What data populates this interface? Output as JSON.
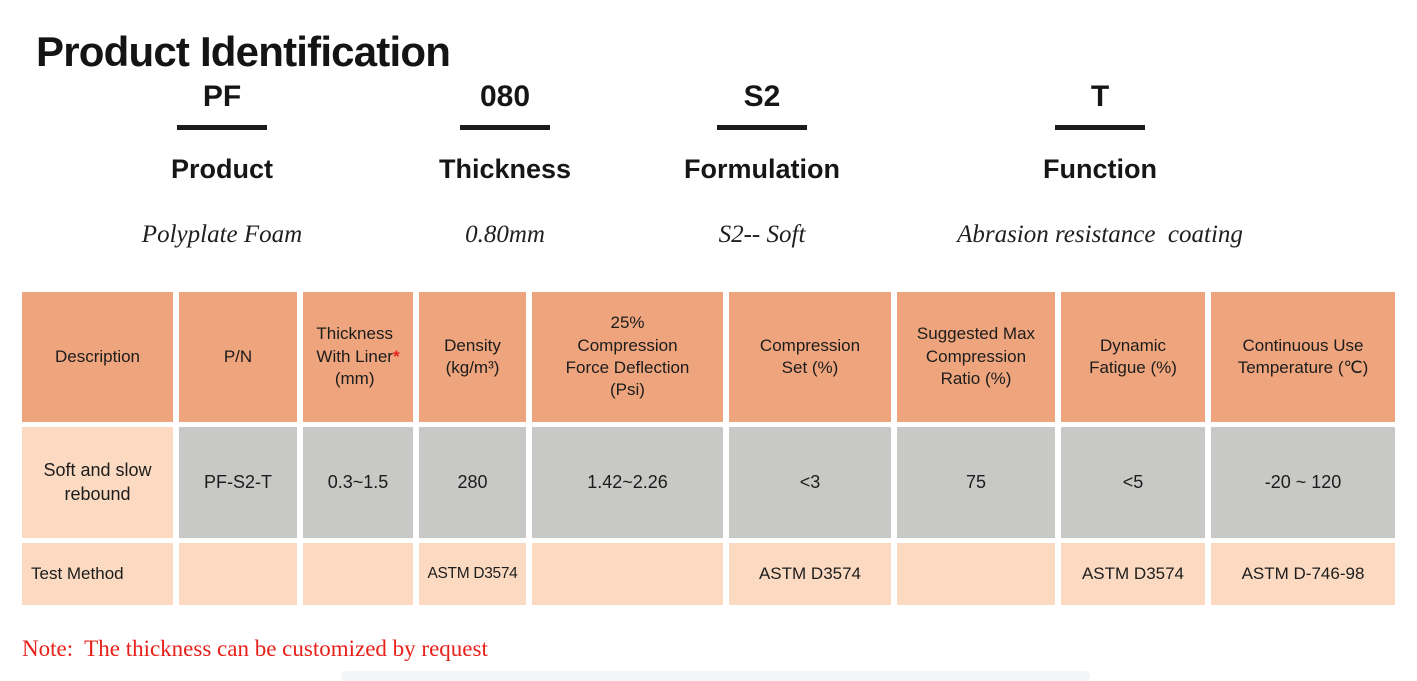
{
  "title": "Product Identification",
  "code_breakdown": [
    {
      "code": "PF",
      "label": "Product",
      "description": "Polyplate Foam"
    },
    {
      "code": "080",
      "label": "Thickness",
      "description": "0.80mm"
    },
    {
      "code": "S2",
      "label": "Formulation",
      "description": "S2-- Soft"
    },
    {
      "code": "T",
      "label": "Function",
      "description": "Abrasion resistance  coating"
    }
  ],
  "spec_table": {
    "headers": [
      "Description",
      "P/N",
      "Thickness\nWith Liner\n(mm)",
      "Density\n(kg/m³)",
      "25%\nCompression\nForce Deflection\n(Psi)",
      "Compression\nSet (%)",
      "Suggested Max\nCompression\nRatio (%)",
      "Dynamic\nFatigue (%)",
      "Continuous Use\nTemperature (℃)"
    ],
    "header_asterisk": "*",
    "data_row": [
      "Soft and slow\nrebound",
      "PF-S2-T",
      "0.3~1.5",
      "280",
      "1.42~2.26",
      "<3",
      "75",
      "<5",
      "-20 ~ 120"
    ],
    "test_method_row": [
      "Test Method",
      "",
      "",
      "ASTM D3574",
      "",
      "ASTM D3574",
      "",
      "ASTM D3574",
      "ASTM D-746-98"
    ]
  },
  "note": "Note:  The thickness can be customized by request",
  "colors": {
    "header_bg": "#EEA57D",
    "highlight_bg": "#FBDAC1",
    "value_bg": "#C8C8C6",
    "note_red": "#E8201A",
    "text_dark": "#1C1C1C"
  }
}
